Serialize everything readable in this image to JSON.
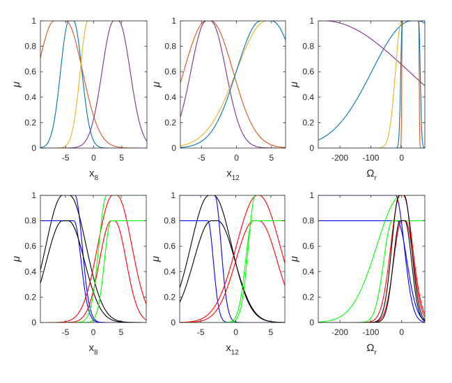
{
  "figure": {
    "ylabel": "μ",
    "ylim": [
      0,
      1
    ],
    "yticks": [
      "0",
      "0.2",
      "0.4",
      "0.6",
      "0.8",
      "1"
    ],
    "colors": {
      "blue": "#0072BD",
      "orange": "#D95319",
      "yellow": "#EDB120",
      "purple": "#7E2F8E",
      "pure_blue": "#0000FF",
      "pure_red": "#FF0000",
      "pure_green": "#00FF00",
      "black": "#000000"
    }
  },
  "chart_data": [
    {
      "type": "line",
      "xlabel_main": "x",
      "xlabel_sub": "8",
      "ylabel": "μ",
      "xlim": [
        -9.5,
        9.5
      ],
      "ylim": [
        0,
        1
      ],
      "xticks": [
        -5,
        0,
        5
      ],
      "series": [
        {
          "kind": "gauss",
          "color": "#0072BD",
          "center": -4.0,
          "sigma": 1.5,
          "height": 1,
          "plateau": [
            -4.4,
            -3.6
          ]
        },
        {
          "kind": "gauss",
          "color": "#D95319",
          "center": -5.5,
          "sigma": 3.0,
          "height": 1,
          "plateau": [
            -7.0,
            -5.0
          ]
        },
        {
          "kind": "gauss",
          "color": "#EDB120",
          "center": 1.0,
          "sigma": 1.4,
          "height": 1,
          "plateau": [
            -1.0,
            9.5
          ]
        },
        {
          "kind": "gauss",
          "color": "#7E2F8E",
          "center": 4.0,
          "sigma": 2.1,
          "height": 1,
          "plateau": [
            3.6,
            4.4
          ]
        }
      ]
    },
    {
      "type": "line",
      "xlabel_main": "x",
      "xlabel_sub": "12",
      "ylabel": "μ",
      "xlim": [
        -8,
        7
      ],
      "ylim": [
        0,
        1
      ],
      "xticks": [
        -5,
        0,
        5
      ],
      "series": [
        {
          "kind": "gauss",
          "color": "#D95319",
          "center": -4.0,
          "sigma": 3.2,
          "height": 1,
          "plateau": [
            -4.3,
            -3.7
          ]
        },
        {
          "kind": "gauss",
          "color": "#7E2F8E",
          "center": -4.0,
          "sigma": 2.2,
          "height": 1,
          "plateau": [
            -4.3,
            -3.7
          ]
        },
        {
          "kind": "gauss",
          "color": "#EDB120",
          "center": 4.3,
          "sigma": 4.3,
          "height": 1,
          "plateau": [
            4.3,
            7.0
          ]
        },
        {
          "kind": "gauss",
          "color": "#0072BD",
          "center": 3.5,
          "sigma": 3.5,
          "height": 1,
          "plateau": [
            3.5,
            5.0
          ]
        }
      ]
    },
    {
      "type": "line",
      "xlabel_main": "Ω",
      "xlabel_sub": "r",
      "ylabel": "μ",
      "xlim": [
        -270,
        75
      ],
      "ylim": [
        0,
        1
      ],
      "xticks": [
        -200,
        -100,
        0
      ],
      "series": [
        {
          "kind": "gauss",
          "color": "#0072BD",
          "center": 32,
          "sigma": 128,
          "height": 1,
          "plateau": [
            32,
            50
          ]
        },
        {
          "kind": "gauss",
          "color": "#7E2F8E",
          "center": -250,
          "sigma": 272,
          "height": 1,
          "plateau": [
            -270,
            -250
          ]
        },
        {
          "kind": "gauss",
          "color": "#EDB120",
          "center": 0,
          "sigma": 20,
          "height": 1,
          "plateau": [
            0,
            75
          ]
        },
        {
          "kind": "gauss",
          "color": "#D95319",
          "center": 2,
          "sigma": 1.6,
          "height": 1,
          "plateau": [
            2,
            55
          ]
        },
        {
          "kind": "gauss",
          "color": "#0072BD",
          "center": 55,
          "sigma": 5,
          "height": 1,
          "plateau": [
            2,
            55
          ]
        }
      ]
    },
    {
      "type": "line",
      "xlabel_main": "x",
      "xlabel_sub": "8",
      "ylabel": "μ",
      "xlim": [
        -9.5,
        9.5
      ],
      "ylim": [
        0,
        1
      ],
      "xticks": [
        -5,
        0,
        5
      ],
      "series": [
        {
          "kind": "gauss",
          "color": "#0000FF",
          "center": -3.3,
          "sigma": 1.3,
          "height": 1,
          "plateau": [
            -9.5,
            -3.3
          ]
        },
        {
          "kind": "gauss",
          "color": "#0000FF",
          "center": -3.5,
          "sigma": 1.3,
          "height": 0.8,
          "plateau": [
            -9.5,
            -3.5
          ]
        },
        {
          "kind": "gauss",
          "color": "#000000",
          "center": -4.3,
          "sigma": 3.0,
          "height": 1,
          "plateau": [
            -5.5,
            -4.3
          ]
        },
        {
          "kind": "gauss",
          "color": "#000000",
          "center": -5.0,
          "sigma": 2.9,
          "height": 0.8,
          "plateau": [
            -5.5,
            -4.5
          ]
        },
        {
          "kind": "gauss",
          "color": "#FF0000",
          "center": 3.5,
          "sigma": 2.7,
          "height": 1,
          "plateau": [
            3.5,
            4.2
          ]
        },
        {
          "kind": "gauss",
          "color": "#FF0000",
          "center": 3.5,
          "sigma": 2.1,
          "height": 0.8,
          "plateau": [
            3.2,
            3.8
          ]
        },
        {
          "kind": "gauss",
          "color": "#00FF00",
          "center": 2.4,
          "sigma": 1.4,
          "height": 1,
          "plateau": [
            2.4,
            9.5
          ]
        },
        {
          "kind": "gauss",
          "color": "#00FF00",
          "center": 3.2,
          "sigma": 1.2,
          "height": 0.8,
          "plateau": [
            3.2,
            9.5
          ]
        }
      ]
    },
    {
      "type": "line",
      "xlabel_main": "x",
      "xlabel_sub": "12",
      "ylabel": "μ",
      "xlim": [
        -8,
        7
      ],
      "ylim": [
        0,
        1
      ],
      "xticks": [
        -5,
        0,
        5
      ],
      "series": [
        {
          "kind": "gauss",
          "color": "#0000FF",
          "center": -3.0,
          "sigma": 0.9,
          "height": 1,
          "plateau": [
            -8,
            -3.0
          ]
        },
        {
          "kind": "gauss",
          "color": "#0000FF",
          "center": -4.0,
          "sigma": 0.8,
          "height": 0.8,
          "plateau": [
            -8,
            -4.0
          ]
        },
        {
          "kind": "gauss",
          "color": "#000000",
          "center": -3.6,
          "sigma": 2.6,
          "height": 1,
          "plateau": [
            -3.8,
            -3.2
          ]
        },
        {
          "kind": "gauss",
          "color": "#000000",
          "center": -3.3,
          "sigma": 2.5,
          "height": 0.8,
          "plateau": [
            -3.5,
            -2.6
          ]
        },
        {
          "kind": "gauss",
          "color": "#FF0000",
          "center": 3.1,
          "sigma": 3.0,
          "height": 1,
          "plateau": [
            3.1,
            3.3
          ]
        },
        {
          "kind": "gauss",
          "color": "#FF0000",
          "center": 2.6,
          "sigma": 2.6,
          "height": 0.8,
          "plateau": [
            2.6,
            3.3
          ]
        },
        {
          "kind": "gauss",
          "color": "#00FF00",
          "center": 2.8,
          "sigma": 1.0,
          "height": 1,
          "plateau": [
            2.8,
            7
          ]
        },
        {
          "kind": "gauss",
          "color": "#00FF00",
          "center": 2.4,
          "sigma": 1.0,
          "height": 0.8,
          "plateau": [
            2.4,
            7
          ]
        }
      ]
    },
    {
      "type": "line",
      "xlabel_main": "Ω",
      "xlabel_sub": "r",
      "ylabel": "μ",
      "xlim": [
        -270,
        75
      ],
      "ylim": [
        0,
        1
      ],
      "xticks": [
        -200,
        -100,
        0
      ],
      "series": [
        {
          "kind": "gauss",
          "color": "#0000FF",
          "center": -20,
          "sigma": 28,
          "height": 1,
          "plateau": [
            -270,
            -20
          ]
        },
        {
          "kind": "gauss",
          "color": "#0000FF",
          "center": -15,
          "sigma": 32,
          "height": 0.8,
          "plateau": [
            -270,
            -15
          ]
        },
        {
          "kind": "gauss",
          "color": "#00FF00",
          "center": 0,
          "sigma": 80,
          "height": 1,
          "plateau": [
            0,
            75
          ]
        },
        {
          "kind": "gauss",
          "color": "#00FF00",
          "center": -30,
          "sigma": 28,
          "height": 0.8,
          "plateau": [
            -30,
            75
          ]
        },
        {
          "kind": "gauss",
          "color": "#FF0000",
          "center": -5,
          "sigma": 30,
          "height": 1,
          "plateau": [
            -5,
            5
          ]
        },
        {
          "kind": "gauss",
          "color": "#FF0000",
          "center": 0,
          "sigma": 26,
          "height": 0.8,
          "plateau": [
            0,
            12
          ]
        },
        {
          "kind": "gauss",
          "color": "#000000",
          "center": -8,
          "sigma": 24,
          "height": 1,
          "plateau": [
            -8,
            8
          ]
        },
        {
          "kind": "gauss",
          "color": "#000000",
          "center": 5,
          "sigma": 22,
          "height": 0.8,
          "plateau": [
            -5,
            10
          ]
        }
      ]
    }
  ]
}
